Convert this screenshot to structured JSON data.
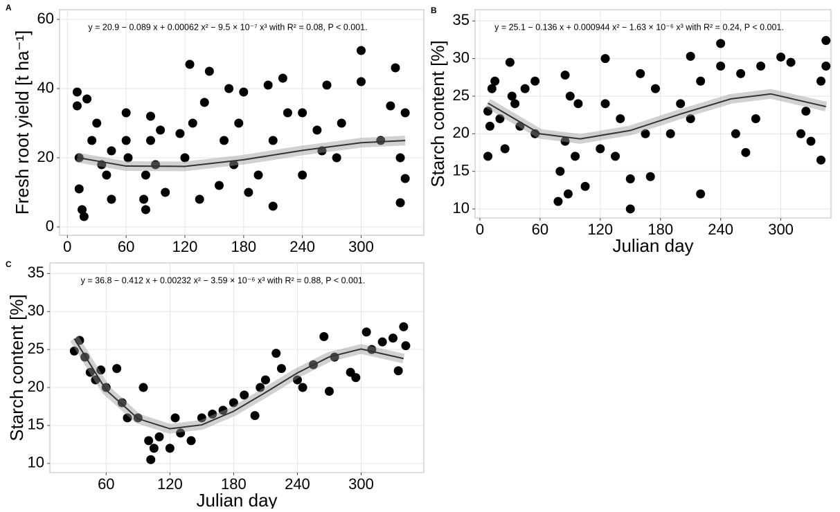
{
  "chart_data": [
    {
      "type": "scatter",
      "panel_label": "A",
      "annotation": "y = 20.9 − 0.089 x + 0.00062 x² − 9.5 × 10⁻⁷ x³ with R² = 0.08, P < 0.001.",
      "y_label": "Fresh root yield [t ha⁻¹]",
      "color": "#000000",
      "grid": true,
      "xlim": [
        -8,
        364
      ],
      "ylim": [
        -2.4,
        62.8
      ],
      "xticks": [
        0,
        60,
        120,
        180,
        240,
        300
      ],
      "yticks": [
        0,
        20,
        40,
        60
      ],
      "x": [
        10,
        10,
        12,
        12,
        15,
        17,
        20,
        25,
        30,
        35,
        40,
        45,
        45,
        60,
        60,
        62,
        78,
        80,
        80,
        85,
        85,
        90,
        95,
        100,
        115,
        120,
        125,
        128,
        135,
        140,
        145,
        155,
        160,
        165,
        170,
        175,
        180,
        185,
        195,
        205,
        210,
        210,
        220,
        225,
        240,
        240,
        255,
        260,
        265,
        275,
        280,
        300,
        300,
        320,
        330,
        335,
        340,
        345,
        345,
        340
      ],
      "values": [
        39,
        35,
        20,
        11,
        5,
        3,
        37,
        25,
        30,
        18,
        15,
        22,
        8,
        33,
        25,
        20,
        8,
        5,
        15,
        32,
        25,
        18,
        28,
        10,
        27,
        20,
        47,
        30,
        8,
        36,
        45,
        12,
        25,
        40,
        18,
        30,
        39,
        10,
        15,
        41,
        25,
        6,
        43,
        33,
        33,
        15,
        28,
        22,
        41,
        20,
        30,
        51,
        42,
        25,
        35,
        46,
        20,
        33,
        14,
        7
      ],
      "fit": {
        "color": "#333333",
        "x": [
          10,
          60,
          120,
          180,
          240,
          300,
          345
        ],
        "values": [
          20.07,
          17.59,
          17.51,
          19.43,
          22.12,
          24.35,
          24.98
        ]
      }
    },
    {
      "type": "scatter",
      "panel_label": "B",
      "annotation": "y = 25.1 − 0.136 x + 0.000944 x² − 1.63 × 10⁻⁶ x³ with R² = 0.24, P < 0.001.",
      "y_label": "Starch content [%]",
      "x_label": "Julian day",
      "color": "#000000",
      "grid": true,
      "xlim": [
        -4.8,
        350
      ],
      "ylim": [
        8.8,
        36.5
      ],
      "xticks": [
        0,
        60,
        120,
        180,
        240,
        300
      ],
      "yticks": [
        10,
        15,
        20,
        25,
        30,
        35
      ],
      "x": [
        8,
        8,
        10,
        12,
        15,
        20,
        25,
        30,
        32,
        35,
        40,
        45,
        55,
        55,
        78,
        80,
        85,
        85,
        88,
        90,
        95,
        98,
        105,
        120,
        125,
        125,
        135,
        140,
        150,
        150,
        160,
        165,
        170,
        175,
        190,
        200,
        210,
        210,
        220,
        220,
        240,
        240,
        255,
        260,
        265,
        275,
        280,
        300,
        310,
        320,
        325,
        330,
        340,
        340,
        345,
        345
      ],
      "values": [
        23,
        17,
        21,
        26,
        27,
        22,
        18,
        29.5,
        25,
        24,
        21,
        26,
        27,
        20,
        11,
        15,
        27.8,
        19,
        12,
        25,
        17,
        24,
        13,
        18,
        30,
        24,
        17,
        22,
        10,
        14,
        28,
        20,
        14.3,
        26,
        20,
        24,
        30.3,
        22,
        12,
        27,
        32,
        29,
        20,
        28,
        17.5,
        22,
        29,
        30.2,
        29.5,
        20,
        23,
        19,
        16.5,
        27,
        32.4,
        29
      ],
      "fit": {
        "color": "#333333",
        "x": [
          8,
          60,
          100,
          150,
          200,
          250,
          290,
          345
        ],
        "values": [
          24.07,
          19.99,
          19.31,
          20.44,
          22.62,
          24.63,
          25.3,
          23.61
        ]
      }
    },
    {
      "type": "scatter",
      "panel_label": "C",
      "annotation": "y = 36.8 − 0.412 x + 0.00232 x² − 3.59 × 10⁻⁶ x³ with R² = 0.88, P < 0.001.",
      "y_label": "Starch content [%]",
      "x_label": "Julian day",
      "color": "#000000",
      "grid": true,
      "xlim": [
        7,
        359
      ],
      "ylim": [
        8.8,
        36.4
      ],
      "xticks": [
        60,
        120,
        180,
        240,
        300
      ],
      "yticks": [
        10,
        15,
        20,
        25,
        30,
        35
      ],
      "x": [
        30,
        35,
        40,
        45,
        50,
        55,
        60,
        70,
        75,
        80,
        90,
        95,
        100,
        102,
        105,
        110,
        120,
        125,
        130,
        140,
        150,
        160,
        170,
        180,
        190,
        200,
        205,
        210,
        220,
        225,
        240,
        245,
        255,
        265,
        270,
        275,
        290,
        295,
        305,
        310,
        320,
        330,
        335,
        340,
        342
      ],
      "values": [
        24.8,
        26.2,
        24,
        22,
        21,
        22.3,
        20,
        22.5,
        18,
        16,
        16,
        20,
        13,
        10.5,
        12,
        13.5,
        12,
        16,
        14,
        13,
        16,
        16.5,
        17,
        18,
        19,
        16.3,
        20,
        21,
        24.5,
        22.5,
        21,
        20,
        23,
        26.7,
        19.5,
        24,
        22,
        21.3,
        27.3,
        25,
        26,
        26.5,
        22.2,
        28,
        25.5
      ],
      "fit": {
        "color": "#333333",
        "x": [
          30,
          60,
          90,
          120,
          150,
          180,
          210,
          240,
          270,
          300,
          340
        ],
        "values": [
          26.43,
          19.66,
          15.89,
          14.57,
          15.08,
          16.87,
          19.34,
          21.92,
          24.03,
          25.07,
          23.81
        ]
      }
    }
  ]
}
